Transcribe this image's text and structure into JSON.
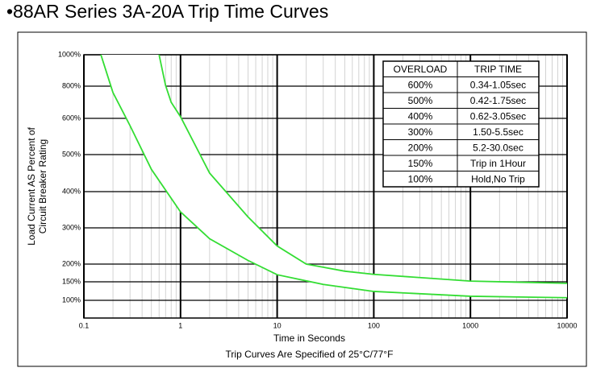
{
  "chart_data": {
    "type": "line",
    "title": "•88AR Series 3A-20A Trip Time Curves",
    "ylabel": [
      "Load Current AS Percent of",
      "Circuit Breaker Rating"
    ],
    "xlabel": "Time in Seconds",
    "note": "Trip Curves Are Specified of 25°C/77°F",
    "xscale": "log",
    "grid": true,
    "xlim": [
      0.1,
      10000
    ],
    "xticks": [
      0.1,
      1,
      10,
      100,
      1000,
      10000
    ],
    "ylim": [
      100,
      1000
    ],
    "yticks": [
      {
        "value": 100,
        "label": "100%"
      },
      {
        "value": 150,
        "label": "150%"
      },
      {
        "value": 200,
        "label": "200%"
      },
      {
        "value": 300,
        "label": "300%"
      },
      {
        "value": 400,
        "label": "400%"
      },
      {
        "value": 500,
        "label": "500%"
      },
      {
        "value": 600,
        "label": "600%"
      },
      {
        "value": 800,
        "label": "800%"
      },
      {
        "value": 1000,
        "label": "1000%"
      }
    ],
    "series": [
      {
        "color": "#33dd33",
        "x": [
          0.6,
          0.7,
          0.8,
          1,
          2,
          5,
          10,
          20,
          50,
          100,
          1000,
          10000
        ],
        "values": [
          1000,
          805,
          700,
          610,
          450,
          330,
          250,
          200,
          180,
          171,
          152,
          146
        ]
      },
      {
        "color": "#33dd33",
        "x": [
          0.15,
          0.2,
          0.3,
          0.5,
          1,
          2,
          5,
          10,
          30,
          100,
          1000,
          10000
        ],
        "values": [
          1000,
          760,
          580,
          460,
          344,
          270,
          210,
          170,
          143,
          124,
          111,
          107
        ]
      }
    ],
    "table": {
      "columns": [
        "OVERLOAD",
        "TRIP TIME"
      ],
      "rows": [
        [
          "600%",
          "0.34-1.05sec"
        ],
        [
          "500%",
          "0.42-1.75sec"
        ],
        [
          "400%",
          "0.62-3.05sec"
        ],
        [
          "300%",
          "1.50-5.5sec"
        ],
        [
          "200%",
          "5.2-30.0sec"
        ],
        [
          "150%",
          "Trip in 1Hour"
        ],
        [
          "100%",
          "Hold,No Trip"
        ]
      ]
    }
  }
}
